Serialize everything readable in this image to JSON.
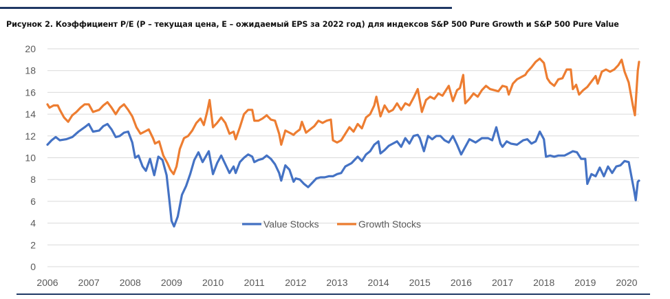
{
  "caption": "Рисунок 2. Коэффициент P/E (P – текущая цена, E – ожидаемый EPS за 2022 год) для индексов S&P 500 Pure Growth и S&P 500 Pure Value",
  "colors": {
    "value": "#4472c4",
    "growth": "#ed7d31",
    "grid": "#d9d9d9",
    "rule": "#1f3864"
  },
  "chart_data": {
    "type": "line",
    "xlabel": "",
    "ylabel": "",
    "xlim": [
      2006.0,
      2020.3
    ],
    "ylim": [
      0,
      20
    ],
    "grid": "horizontal",
    "legend_position": "center",
    "x_ticks": [
      "2006",
      "2007",
      "2008",
      "2009",
      "2010",
      "2011",
      "2012",
      "2013",
      "2014",
      "2015",
      "2016",
      "2017",
      "2018",
      "2019",
      "2020"
    ],
    "y_ticks": [
      "0",
      "2",
      "4",
      "6",
      "8",
      "10",
      "12",
      "14",
      "16",
      "18",
      "20"
    ],
    "series": [
      {
        "name": "Value Stocks",
        "color": "#4472c4",
        "points": [
          [
            2006.0,
            11.2
          ],
          [
            2006.1,
            11.6
          ],
          [
            2006.2,
            11.9
          ],
          [
            2006.3,
            11.6
          ],
          [
            2006.45,
            11.7
          ],
          [
            2006.6,
            11.9
          ],
          [
            2006.75,
            12.4
          ],
          [
            2006.9,
            12.8
          ],
          [
            2007.0,
            13.1
          ],
          [
            2007.1,
            12.4
          ],
          [
            2007.25,
            12.5
          ],
          [
            2007.35,
            12.9
          ],
          [
            2007.45,
            13.1
          ],
          [
            2007.55,
            12.6
          ],
          [
            2007.65,
            11.9
          ],
          [
            2007.75,
            12.0
          ],
          [
            2007.85,
            12.3
          ],
          [
            2007.95,
            12.4
          ],
          [
            2008.05,
            11.4
          ],
          [
            2008.12,
            10.0
          ],
          [
            2008.2,
            10.2
          ],
          [
            2008.3,
            9.2
          ],
          [
            2008.38,
            8.8
          ],
          [
            2008.48,
            9.9
          ],
          [
            2008.58,
            8.4
          ],
          [
            2008.68,
            10.1
          ],
          [
            2008.78,
            9.8
          ],
          [
            2008.88,
            8.4
          ],
          [
            2008.95,
            6.0
          ],
          [
            2009.0,
            4.2
          ],
          [
            2009.06,
            3.7
          ],
          [
            2009.15,
            4.6
          ],
          [
            2009.25,
            6.6
          ],
          [
            2009.35,
            7.4
          ],
          [
            2009.45,
            8.5
          ],
          [
            2009.55,
            9.8
          ],
          [
            2009.65,
            10.5
          ],
          [
            2009.75,
            9.6
          ],
          [
            2009.9,
            10.6
          ],
          [
            2010.0,
            8.5
          ],
          [
            2010.1,
            9.5
          ],
          [
            2010.2,
            10.2
          ],
          [
            2010.3,
            9.4
          ],
          [
            2010.4,
            8.6
          ],
          [
            2010.5,
            9.2
          ],
          [
            2010.55,
            8.6
          ],
          [
            2010.65,
            9.6
          ],
          [
            2010.75,
            10.0
          ],
          [
            2010.85,
            10.3
          ],
          [
            2010.95,
            10.1
          ],
          [
            2011.0,
            9.6
          ],
          [
            2011.1,
            9.8
          ],
          [
            2011.2,
            9.9
          ],
          [
            2011.3,
            10.2
          ],
          [
            2011.4,
            9.9
          ],
          [
            2011.5,
            9.4
          ],
          [
            2011.6,
            8.6
          ],
          [
            2011.65,
            7.9
          ],
          [
            2011.75,
            9.3
          ],
          [
            2011.85,
            8.9
          ],
          [
            2011.95,
            7.8
          ],
          [
            2012.0,
            8.1
          ],
          [
            2012.1,
            8.0
          ],
          [
            2012.2,
            7.6
          ],
          [
            2012.3,
            7.3
          ],
          [
            2012.4,
            7.7
          ],
          [
            2012.5,
            8.1
          ],
          [
            2012.6,
            8.2
          ],
          [
            2012.7,
            8.2
          ],
          [
            2012.8,
            8.3
          ],
          [
            2012.9,
            8.3
          ],
          [
            2013.0,
            8.5
          ],
          [
            2013.1,
            8.6
          ],
          [
            2013.2,
            9.2
          ],
          [
            2013.35,
            9.5
          ],
          [
            2013.5,
            10.1
          ],
          [
            2013.6,
            9.7
          ],
          [
            2013.7,
            10.3
          ],
          [
            2013.8,
            10.6
          ],
          [
            2013.9,
            11.2
          ],
          [
            2014.0,
            11.5
          ],
          [
            2014.05,
            10.4
          ],
          [
            2014.15,
            10.7
          ],
          [
            2014.25,
            11.1
          ],
          [
            2014.35,
            11.3
          ],
          [
            2014.45,
            11.5
          ],
          [
            2014.55,
            11.0
          ],
          [
            2014.65,
            11.8
          ],
          [
            2014.75,
            11.3
          ],
          [
            2014.85,
            12.0
          ],
          [
            2014.95,
            12.1
          ],
          [
            2015.0,
            11.8
          ],
          [
            2015.1,
            10.6
          ],
          [
            2015.2,
            12.0
          ],
          [
            2015.3,
            11.7
          ],
          [
            2015.4,
            12.0
          ],
          [
            2015.5,
            12.0
          ],
          [
            2015.6,
            11.6
          ],
          [
            2015.7,
            11.4
          ],
          [
            2015.8,
            12.0
          ],
          [
            2015.9,
            11.2
          ],
          [
            2016.0,
            10.3
          ],
          [
            2016.1,
            11.0
          ],
          [
            2016.2,
            11.7
          ],
          [
            2016.35,
            11.4
          ],
          [
            2016.5,
            11.8
          ],
          [
            2016.65,
            11.8
          ],
          [
            2016.75,
            11.6
          ],
          [
            2016.85,
            12.8
          ],
          [
            2016.95,
            11.3
          ],
          [
            2017.0,
            11.0
          ],
          [
            2017.1,
            11.5
          ],
          [
            2017.2,
            11.3
          ],
          [
            2017.35,
            11.2
          ],
          [
            2017.5,
            11.6
          ],
          [
            2017.6,
            11.7
          ],
          [
            2017.7,
            11.3
          ],
          [
            2017.8,
            11.5
          ],
          [
            2017.9,
            12.4
          ],
          [
            2018.0,
            11.7
          ],
          [
            2018.05,
            10.1
          ],
          [
            2018.15,
            10.2
          ],
          [
            2018.25,
            10.1
          ],
          [
            2018.35,
            10.2
          ],
          [
            2018.5,
            10.2
          ],
          [
            2018.6,
            10.4
          ],
          [
            2018.7,
            10.6
          ],
          [
            2018.8,
            10.5
          ],
          [
            2018.9,
            9.9
          ],
          [
            2019.0,
            9.9
          ],
          [
            2019.05,
            7.6
          ],
          [
            2019.15,
            8.5
          ],
          [
            2019.25,
            8.3
          ],
          [
            2019.35,
            9.1
          ],
          [
            2019.45,
            8.3
          ],
          [
            2019.55,
            9.2
          ],
          [
            2019.65,
            8.6
          ],
          [
            2019.75,
            9.2
          ],
          [
            2019.85,
            9.3
          ],
          [
            2019.95,
            9.7
          ],
          [
            2020.05,
            9.6
          ],
          [
            2020.1,
            8.6
          ],
          [
            2020.18,
            7.0
          ],
          [
            2020.22,
            6.1
          ],
          [
            2020.27,
            7.8
          ],
          [
            2020.3,
            7.9
          ]
        ]
      },
      {
        "name": "Growth Stocks",
        "color": "#ed7d31",
        "points": [
          [
            2006.0,
            14.9
          ],
          [
            2006.05,
            14.6
          ],
          [
            2006.15,
            14.8
          ],
          [
            2006.25,
            14.8
          ],
          [
            2006.3,
            14.4
          ],
          [
            2006.4,
            13.7
          ],
          [
            2006.5,
            13.3
          ],
          [
            2006.6,
            13.9
          ],
          [
            2006.7,
            14.2
          ],
          [
            2006.8,
            14.6
          ],
          [
            2006.9,
            14.9
          ],
          [
            2007.0,
            14.9
          ],
          [
            2007.1,
            14.2
          ],
          [
            2007.25,
            14.4
          ],
          [
            2007.35,
            14.8
          ],
          [
            2007.45,
            15.1
          ],
          [
            2007.55,
            14.6
          ],
          [
            2007.65,
            14.0
          ],
          [
            2007.75,
            14.6
          ],
          [
            2007.85,
            14.9
          ],
          [
            2007.95,
            14.4
          ],
          [
            2008.05,
            13.8
          ],
          [
            2008.15,
            12.8
          ],
          [
            2008.25,
            12.2
          ],
          [
            2008.35,
            12.4
          ],
          [
            2008.45,
            12.6
          ],
          [
            2008.55,
            11.8
          ],
          [
            2008.6,
            11.3
          ],
          [
            2008.7,
            11.5
          ],
          [
            2008.8,
            10.2
          ],
          [
            2008.9,
            9.5
          ],
          [
            2008.97,
            8.9
          ],
          [
            2009.05,
            8.5
          ],
          [
            2009.12,
            9.2
          ],
          [
            2009.2,
            10.8
          ],
          [
            2009.3,
            11.8
          ],
          [
            2009.4,
            12.0
          ],
          [
            2009.5,
            12.5
          ],
          [
            2009.6,
            13.2
          ],
          [
            2009.7,
            13.6
          ],
          [
            2009.78,
            13.0
          ],
          [
            2009.86,
            14.2
          ],
          [
            2009.92,
            15.3
          ],
          [
            2010.0,
            12.8
          ],
          [
            2010.1,
            13.2
          ],
          [
            2010.2,
            13.7
          ],
          [
            2010.3,
            13.2
          ],
          [
            2010.4,
            12.2
          ],
          [
            2010.5,
            12.4
          ],
          [
            2010.55,
            11.7
          ],
          [
            2010.65,
            12.8
          ],
          [
            2010.75,
            14.0
          ],
          [
            2010.85,
            14.4
          ],
          [
            2010.95,
            14.4
          ],
          [
            2011.0,
            13.4
          ],
          [
            2011.1,
            13.4
          ],
          [
            2011.2,
            13.6
          ],
          [
            2011.3,
            13.9
          ],
          [
            2011.4,
            13.5
          ],
          [
            2011.5,
            13.4
          ],
          [
            2011.6,
            12.2
          ],
          [
            2011.65,
            11.2
          ],
          [
            2011.75,
            12.5
          ],
          [
            2011.85,
            12.3
          ],
          [
            2011.95,
            12.1
          ],
          [
            2012.0,
            12.3
          ],
          [
            2012.1,
            12.6
          ],
          [
            2012.15,
            13.3
          ],
          [
            2012.25,
            12.3
          ],
          [
            2012.35,
            12.6
          ],
          [
            2012.45,
            12.9
          ],
          [
            2012.55,
            13.4
          ],
          [
            2012.65,
            13.2
          ],
          [
            2012.75,
            13.4
          ],
          [
            2012.85,
            13.5
          ],
          [
            2012.9,
            11.6
          ],
          [
            2013.0,
            11.4
          ],
          [
            2013.1,
            11.6
          ],
          [
            2013.2,
            12.2
          ],
          [
            2013.3,
            12.8
          ],
          [
            2013.4,
            12.4
          ],
          [
            2013.5,
            13.1
          ],
          [
            2013.6,
            12.7
          ],
          [
            2013.7,
            13.7
          ],
          [
            2013.8,
            14.0
          ],
          [
            2013.9,
            14.8
          ],
          [
            2013.95,
            15.6
          ],
          [
            2014.05,
            13.8
          ],
          [
            2014.15,
            14.8
          ],
          [
            2014.25,
            14.2
          ],
          [
            2014.35,
            14.4
          ],
          [
            2014.45,
            15.0
          ],
          [
            2014.55,
            14.4
          ],
          [
            2014.65,
            15.0
          ],
          [
            2014.75,
            14.8
          ],
          [
            2014.85,
            15.5
          ],
          [
            2014.95,
            16.3
          ],
          [
            2015.05,
            14.2
          ],
          [
            2015.15,
            15.3
          ],
          [
            2015.25,
            15.6
          ],
          [
            2015.35,
            15.4
          ],
          [
            2015.45,
            15.9
          ],
          [
            2015.55,
            15.7
          ],
          [
            2015.6,
            16.0
          ],
          [
            2015.7,
            16.6
          ],
          [
            2015.8,
            15.2
          ],
          [
            2015.9,
            16.2
          ],
          [
            2015.97,
            16.4
          ],
          [
            2016.05,
            17.6
          ],
          [
            2016.1,
            15.0
          ],
          [
            2016.2,
            15.4
          ],
          [
            2016.3,
            15.9
          ],
          [
            2016.4,
            15.6
          ],
          [
            2016.5,
            16.2
          ],
          [
            2016.6,
            16.6
          ],
          [
            2016.7,
            16.3
          ],
          [
            2016.8,
            16.2
          ],
          [
            2016.9,
            16.1
          ],
          [
            2017.0,
            16.6
          ],
          [
            2017.1,
            16.5
          ],
          [
            2017.15,
            15.8
          ],
          [
            2017.25,
            16.8
          ],
          [
            2017.35,
            17.2
          ],
          [
            2017.45,
            17.4
          ],
          [
            2017.55,
            17.6
          ],
          [
            2017.6,
            17.9
          ],
          [
            2017.7,
            18.3
          ],
          [
            2017.8,
            18.8
          ],
          [
            2017.9,
            19.1
          ],
          [
            2018.0,
            18.7
          ],
          [
            2018.08,
            17.3
          ],
          [
            2018.15,
            16.9
          ],
          [
            2018.25,
            16.6
          ],
          [
            2018.35,
            17.2
          ],
          [
            2018.45,
            17.3
          ],
          [
            2018.55,
            18.1
          ],
          [
            2018.65,
            18.1
          ],
          [
            2018.7,
            16.3
          ],
          [
            2018.78,
            16.7
          ],
          [
            2018.85,
            15.8
          ],
          [
            2018.95,
            16.2
          ],
          [
            2019.05,
            16.5
          ],
          [
            2019.15,
            17.0
          ],
          [
            2019.25,
            17.5
          ],
          [
            2019.3,
            16.8
          ],
          [
            2019.4,
            17.9
          ],
          [
            2019.5,
            18.1
          ],
          [
            2019.6,
            17.9
          ],
          [
            2019.7,
            18.1
          ],
          [
            2019.8,
            18.5
          ],
          [
            2019.88,
            19.0
          ],
          [
            2019.95,
            17.9
          ],
          [
            2020.05,
            16.9
          ],
          [
            2020.15,
            14.8
          ],
          [
            2020.2,
            13.9
          ],
          [
            2020.27,
            18.0
          ],
          [
            2020.3,
            18.8
          ]
        ]
      }
    ]
  }
}
